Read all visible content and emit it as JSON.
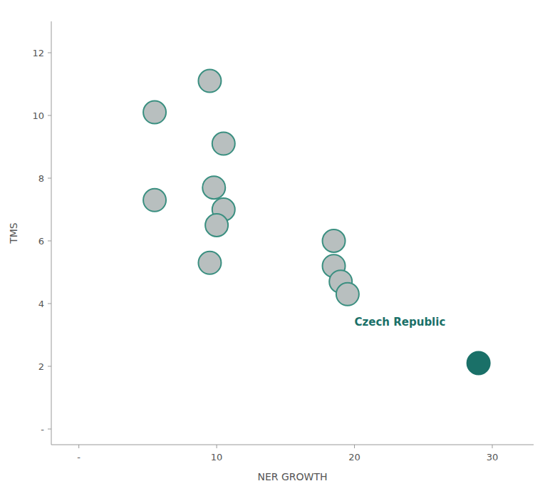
{
  "chart_data": {
    "type": "scatter",
    "xlabel": "NER GROWTH",
    "ylabel": "TMS",
    "xlim": [
      -2,
      33
    ],
    "ylim": [
      -0.5,
      13
    ],
    "xticks": [
      {
        "value": 0,
        "label": "-"
      },
      10,
      20,
      30
    ],
    "yticks": [
      {
        "value": 0,
        "label": "-"
      },
      2,
      4,
      6,
      8,
      10,
      12
    ],
    "grid": false,
    "series": [
      {
        "color": "#b8bfbf",
        "x": [
          5.5,
          5.5,
          9.5,
          10.5,
          9.8,
          10.5,
          10.0,
          9.5,
          18.5,
          18.5,
          19.0,
          19.5
        ],
        "values": [
          10.1,
          7.3,
          11.1,
          9.1,
          7.7,
          7.0,
          6.5,
          5.3,
          6.0,
          5.2,
          4.7,
          4.3
        ]
      },
      {
        "color": "#1a7068",
        "x": [
          29
        ],
        "values": [
          2.1
        ]
      }
    ],
    "annotations": [
      {
        "text": "Czech Republic",
        "x": 20.0,
        "y": 3.3,
        "color": "#1a7068"
      }
    ]
  }
}
